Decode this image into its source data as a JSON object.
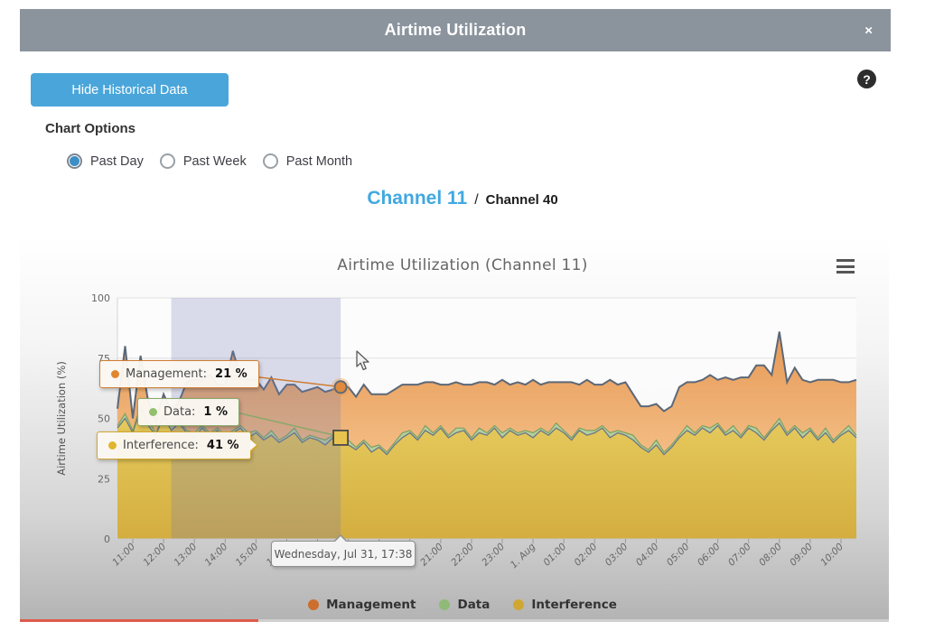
{
  "modal": {
    "title": "Airtime Utilization",
    "close_glyph": "×"
  },
  "toolbar": {
    "hide_historical_label": "Hide Historical Data",
    "help_glyph": "?"
  },
  "chart_options": {
    "heading": "Chart Options",
    "radios": [
      {
        "label": "Past Day",
        "selected": true
      },
      {
        "label": "Past Week",
        "selected": false
      },
      {
        "label": "Past Month",
        "selected": false
      }
    ]
  },
  "channels": {
    "active": "Channel 11",
    "separator": "/",
    "inactive": "Channel 40"
  },
  "colors": {
    "header_gray": "#8b949d",
    "button_blue": "#4aa6da",
    "active_tab_blue": "#41a8e1",
    "radio_blue": "#3d8ec4",
    "selection_overlay": "rgba(110,120,180,0.25)",
    "progress_red": "#dd5a4b"
  },
  "chart_data": {
    "type": "area",
    "stacked": true,
    "title": "Airtime Utilization (Channel 11)",
    "ylabel": "Airtime Utilization (%)",
    "ylim": [
      0,
      100
    ],
    "yticks": [
      0,
      25,
      50,
      75,
      100
    ],
    "grid": true,
    "legend_position": "bottom",
    "xticklabels": [
      "11:00",
      "12:00",
      "13:00",
      "14:00",
      "15:00",
      "16:00",
      "17:00",
      "18:00",
      "19:00",
      "20:00",
      "21:00",
      "22:00",
      "23:00",
      "1. Aug",
      "01:00",
      "02:00",
      "03:00",
      "04:00",
      "05:00",
      "06:00",
      "07:00",
      "08:00",
      "09:00",
      "10:00"
    ],
    "series": [
      {
        "name": "Management",
        "color": "#cc6e2e",
        "fill_top": "#e28f48",
        "fill_bottom": "#f3bc83",
        "line": "#5c6878",
        "values": [
          7,
          28,
          5,
          21,
          8,
          5,
          8,
          6,
          8,
          20,
          22,
          19,
          24,
          18,
          21,
          33,
          20,
          22,
          21,
          20,
          22,
          19,
          21,
          18,
          20,
          19,
          21,
          20,
          19,
          21,
          22,
          21,
          23,
          22,
          21,
          24,
          22,
          20,
          19,
          22,
          18,
          21,
          17,
          21,
          19,
          18,
          22,
          19,
          21,
          17,
          22,
          18,
          21,
          19,
          22,
          18,
          21,
          17,
          20,
          23,
          18,
          21,
          19,
          17,
          22,
          19,
          21,
          17,
          16,
          18,
          15,
          17,
          16,
          20,
          18,
          21,
          19,
          22,
          18,
          23,
          19,
          24,
          20,
          26,
          30,
          22,
          36,
          21,
          24,
          22,
          19,
          24,
          20,
          25,
          21,
          18,
          23
        ]
      },
      {
        "name": "Data",
        "color": "#8fba77",
        "fill_top": "#b3cf9e",
        "fill_bottom": "#b3cf9e",
        "line": "#7fa05e",
        "values": [
          1,
          2,
          1,
          1,
          2,
          1,
          1,
          2,
          1,
          1,
          2,
          1,
          1,
          1,
          2,
          1,
          1,
          2,
          1,
          1,
          2,
          1,
          1,
          2,
          1,
          1,
          1,
          2,
          1,
          1,
          2,
          1,
          1,
          2,
          1,
          1,
          1,
          2,
          1,
          1,
          2,
          1,
          1,
          1,
          2,
          1,
          1,
          2,
          1,
          1,
          2,
          1,
          1,
          1,
          2,
          1,
          1,
          2,
          1,
          1,
          1,
          2,
          1,
          1,
          2,
          1,
          1,
          2,
          1,
          1,
          2,
          1,
          1,
          1,
          2,
          1,
          1,
          2,
          1,
          1,
          2,
          1,
          1,
          2,
          1,
          1,
          2,
          1,
          1,
          2,
          1,
          1,
          2,
          1,
          1,
          2,
          1
        ]
      },
      {
        "name": "Interference",
        "color": "#d1a733",
        "fill_top": "#ead164",
        "fill_bottom": "#d4ad3f",
        "line": "#6b7585",
        "values": [
          46,
          50,
          44,
          54,
          47,
          43,
          51,
          45,
          48,
          44,
          42,
          46,
          43,
          45,
          41,
          44,
          46,
          42,
          44,
          41,
          43,
          40,
          42,
          44,
          40,
          42,
          41,
          39,
          42,
          41,
          39,
          37,
          40,
          36,
          38,
          35,
          39,
          42,
          44,
          41,
          45,
          43,
          46,
          42,
          44,
          45,
          41,
          44,
          43,
          46,
          42,
          45,
          43,
          44,
          42,
          45,
          43,
          46,
          44,
          41,
          45,
          43,
          44,
          46,
          42,
          44,
          43,
          41,
          38,
          36,
          39,
          35,
          38,
          42,
          45,
          43,
          46,
          44,
          47,
          43,
          45,
          42,
          46,
          44,
          41,
          45,
          48,
          43,
          46,
          42,
          45,
          41,
          44,
          40,
          43,
          45,
          42
        ]
      }
    ],
    "hover": {
      "from_index": 7,
      "to_index": 29,
      "time_label": "Wednesday, Jul 31, 17:38",
      "points": [
        {
          "label": "Management:",
          "value": "21 %",
          "color": "#e0862f",
          "border": "#cf7d35"
        },
        {
          "label": "Data:",
          "value": "1 %",
          "color": "#93c06f",
          "border": "#8aa86b"
        },
        {
          "label": "Interference:",
          "value": "41 %",
          "color": "#e0b52e",
          "border": "#d2a62e"
        }
      ]
    }
  }
}
